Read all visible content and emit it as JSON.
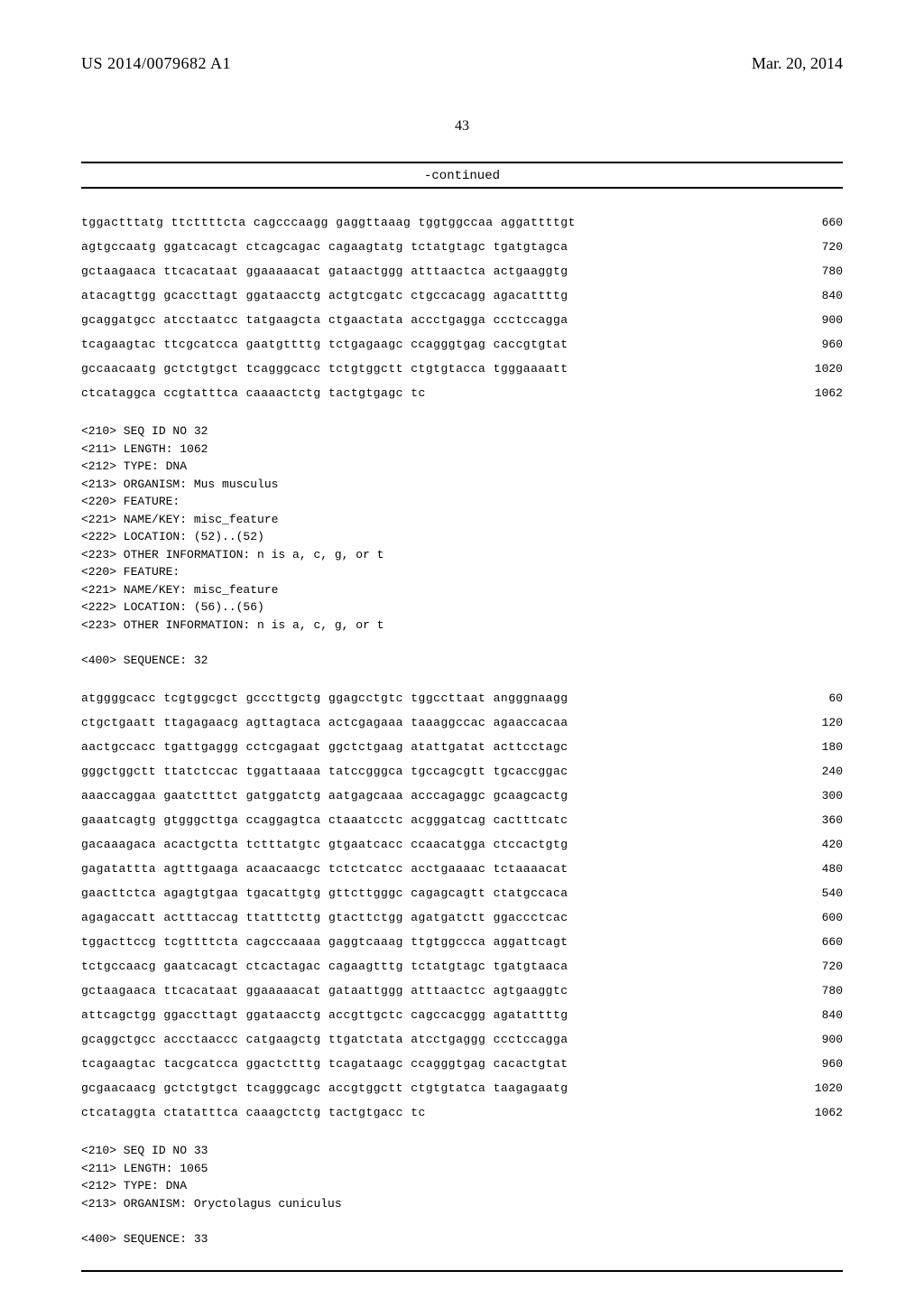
{
  "header": {
    "pub_number": "US 2014/0079682 A1",
    "pub_date": "Mar. 20, 2014",
    "page_number": "43",
    "continued": "-continued"
  },
  "seq_block1": {
    "rows": [
      {
        "t": "tggactttatg ttcttttcta cagcccaagg gaggttaaag tggtggccaa aggattttgt",
        "p": "660"
      },
      {
        "t": "agtgccaatg ggatcacagt ctcagcagac cagaagtatg tctatgtagc tgatgtagca",
        "p": "720"
      },
      {
        "t": "gctaagaaca ttcacataat ggaaaaacat gataactggg atttaactca actgaaggtg",
        "p": "780"
      },
      {
        "t": "atacagttgg gcaccttagt ggataacctg actgtcgatc ctgccacagg agacattttg",
        "p": "840"
      },
      {
        "t": "gcaggatgcc atcctaatcc tatgaagcta ctgaactata accctgagga ccctccagga",
        "p": "900"
      },
      {
        "t": "tcagaagtac ttcgcatcca gaatgttttg tctgagaagc ccagggtgag caccgtgtat",
        "p": "960"
      },
      {
        "t": "gccaacaatg gctctgtgct tcagggcacc tctgtggctt ctgtgtacca tgggaaaatt",
        "p": "1020"
      },
      {
        "t": "ctcataggca ccgtatttca caaaactctg tactgtgagc tc",
        "p": "1062"
      }
    ]
  },
  "meta32": {
    "lines": [
      "<210> SEQ ID NO 32",
      "<211> LENGTH: 1062",
      "<212> TYPE: DNA",
      "<213> ORGANISM: Mus musculus",
      "<220> FEATURE:",
      "<221> NAME/KEY: misc_feature",
      "<222> LOCATION: (52)..(52)",
      "<223> OTHER INFORMATION: n is a, c, g, or t",
      "<220> FEATURE:",
      "<221> NAME/KEY: misc_feature",
      "<222> LOCATION: (56)..(56)",
      "<223> OTHER INFORMATION: n is a, c, g, or t",
      "",
      "<400> SEQUENCE: 32"
    ]
  },
  "seq_block2": {
    "rows": [
      {
        "t": "atggggcacc tcgtggcgct gcccttgctg ggagcctgtc tggccttaat angggnaagg",
        "p": "60"
      },
      {
        "t": "ctgctgaatt ttagagaacg agttagtaca actcgagaaa taaaggccac agaaccacaa",
        "p": "120"
      },
      {
        "t": "aactgccacc tgattgaggg cctcgagaat ggctctgaag atattgatat acttcctagc",
        "p": "180"
      },
      {
        "t": "gggctggctt ttatctccac tggattaaaa tatccgggca tgccagcgtt tgcaccggac",
        "p": "240"
      },
      {
        "t": "aaaccaggaa gaatctttct gatggatctg aatgagcaaa acccagaggc gcaagcactg",
        "p": "300"
      },
      {
        "t": "gaaatcagtg gtgggcttga ccaggagtca ctaaatcctc acgggatcag cactttcatc",
        "p": "360"
      },
      {
        "t": "gacaaagaca acactgctta tctttatgtc gtgaatcacc ccaacatgga ctccactgtg",
        "p": "420"
      },
      {
        "t": "gagatattta agtttgaaga acaacaacgc tctctcatcc acctgaaaac tctaaaacat",
        "p": "480"
      },
      {
        "t": "gaacttctca agagtgtgaa tgacattgtg gttcttgggc cagagcagtt ctatgccaca",
        "p": "540"
      },
      {
        "t": "agagaccatt actttaccag ttatttcttg gtacttctgg agatgatctt ggaccctcac",
        "p": "600"
      },
      {
        "t": "tggacttccg tcgttttcta cagcccaaaa gaggtcaaag ttgtggccca aggattcagt",
        "p": "660"
      },
      {
        "t": "tctgccaacg gaatcacagt ctcactagac cagaagtttg tctatgtagc tgatgtaaca",
        "p": "720"
      },
      {
        "t": "gctaagaaca ttcacataat ggaaaaacat gataattggg atttaactcc agtgaaggtc",
        "p": "780"
      },
      {
        "t": "attcagctgg ggaccttagt ggataacctg accgttgctc cagccacggg agatattttg",
        "p": "840"
      },
      {
        "t": "gcaggctgcc accctaaccc catgaagctg ttgatctata atcctgaggg ccctccagga",
        "p": "900"
      },
      {
        "t": "tcagaagtac tacgcatcca ggactctttg tcagataagc ccagggtgag cacactgtat",
        "p": "960"
      },
      {
        "t": "gcgaacaacg gctctgtgct tcagggcagc accgtggctt ctgtgtatca taagagaatg",
        "p": "1020"
      },
      {
        "t": "ctcataggta ctatatttca caaagctctg tactgtgacc tc",
        "p": "1062"
      }
    ]
  },
  "meta33": {
    "lines": [
      "<210> SEQ ID NO 33",
      "<211> LENGTH: 1065",
      "<212> TYPE: DNA",
      "<213> ORGANISM: Oryctolagus cuniculus",
      "",
      "<400> SEQUENCE: 33"
    ]
  }
}
